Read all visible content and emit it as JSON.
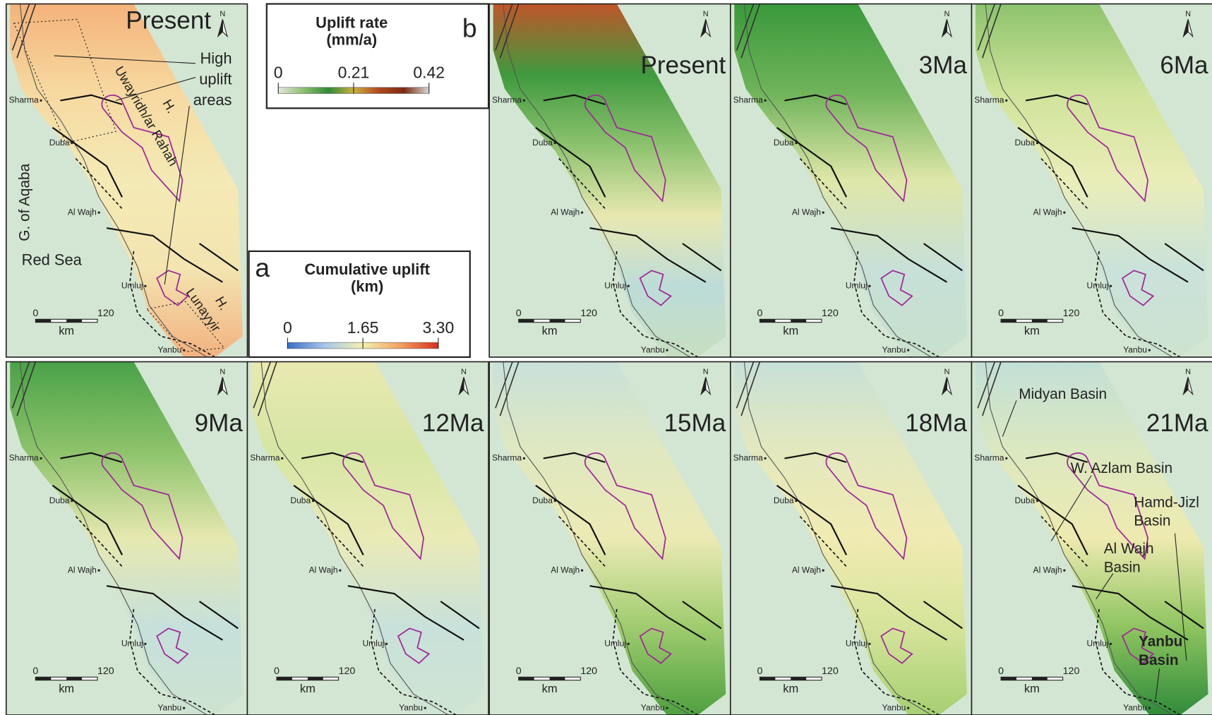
{
  "legend_rate": {
    "letter": "b",
    "title": [
      "Uplift rate",
      "(mm/a)"
    ],
    "ticks": [
      "0",
      "0.21",
      "0.42"
    ]
  },
  "legend_cumulative": {
    "letter": "a",
    "title": [
      "Cumulative uplift",
      "(km)"
    ],
    "ticks": [
      "0",
      "1.65",
      "3.30"
    ]
  },
  "common": {
    "places": [
      "Sharma",
      "Duba",
      "Al Wajh",
      "Umluj",
      "Yanbu"
    ],
    "north": "N",
    "scale": [
      "0",
      "120"
    ],
    "scale_unit": "km"
  },
  "panels": [
    {
      "label": "Present",
      "annotations": [
        [
          "High",
          "uplift",
          "areas"
        ],
        [
          "H."
        ],
        [
          "Uwayridh/ar Rahah"
        ],
        [
          "G. of Aqaba"
        ],
        [
          "Red Sea"
        ],
        [
          "H."
        ],
        [
          "Lunayyir"
        ]
      ]
    },
    {
      "label": "Present"
    },
    {
      "label": "3Ma"
    },
    {
      "label": "6Ma"
    },
    {
      "label": "9Ma"
    },
    {
      "label": "12Ma"
    },
    {
      "label": "15Ma"
    },
    {
      "label": "18Ma"
    },
    {
      "label": "21Ma",
      "annotations": [
        [
          "Midyan Basin"
        ],
        [
          "W. Azlam Basin"
        ],
        [
          "Hamd-Jizl",
          "Basin"
        ],
        [
          "Al Wajh",
          "Basin"
        ],
        [
          "Yanbu",
          "Basin"
        ]
      ]
    }
  ]
}
